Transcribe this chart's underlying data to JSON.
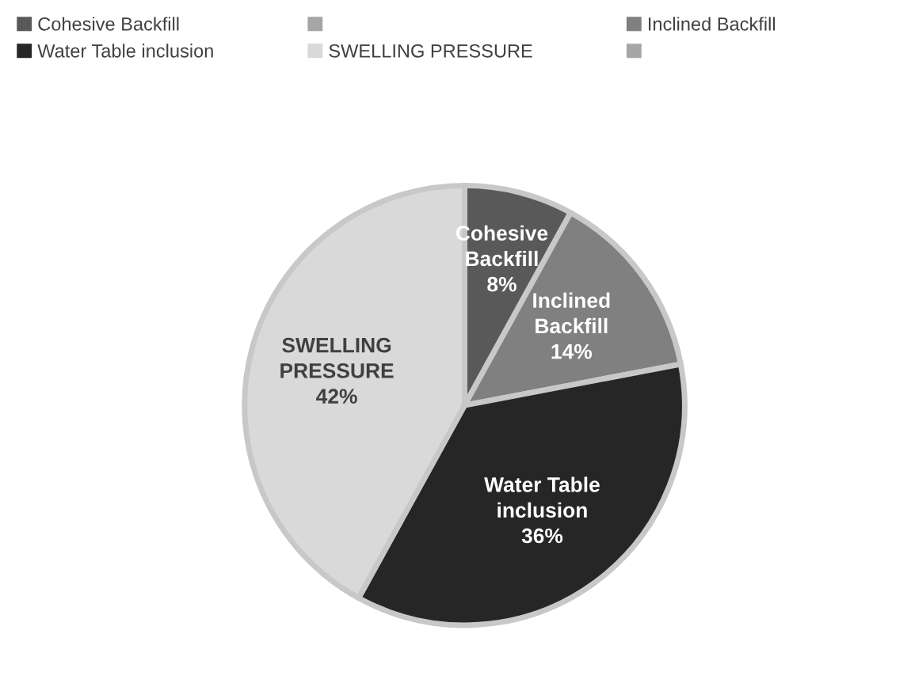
{
  "chart_data": {
    "type": "pie",
    "categories": [
      "Cohesive Backfill",
      "Inclined Backfill",
      "Water Table inclusion",
      "SWELLING PRESSURE"
    ],
    "values": [
      8,
      14,
      36,
      42
    ],
    "colors": [
      "#595959",
      "#808080",
      "#262626",
      "#d9d9d9"
    ],
    "value_labels": [
      "8%",
      "14%",
      "36%",
      "42%"
    ],
    "legend": "top"
  }
}
